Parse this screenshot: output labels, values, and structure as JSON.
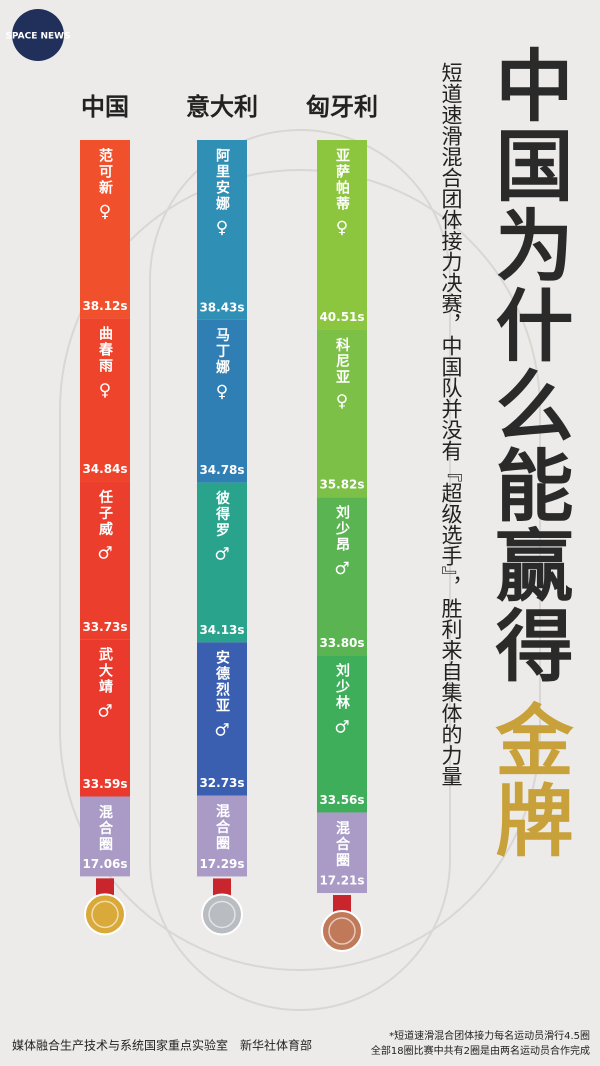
{
  "logo": "SPACE NEWS",
  "chart_data": {
    "type": "stacked-bar",
    "title": [
      "中国为什么能赢得",
      "金牌"
    ],
    "subtitle": "短道速滑混合团体接力决赛，中国队并没有『超级选手』，胜利来自集体的力量",
    "stacks": [
      {
        "name": "中国",
        "medal": "#d9a93a",
        "segments": [
          {
            "label": "范可新",
            "gender": "♀",
            "value": 38.12,
            "value_label": "38.12s",
            "color": "#f0502c"
          },
          {
            "label": "曲春雨",
            "gender": "♀",
            "value": 34.84,
            "value_label": "34.84s",
            "color": "#ee442b"
          },
          {
            "label": "任子威",
            "gender": "♂",
            "value": 33.73,
            "value_label": "33.73s",
            "color": "#ec3e2c"
          },
          {
            "label": "武大靖",
            "gender": "♂",
            "value": 33.59,
            "value_label": "33.59s",
            "color": "#ea3a2e"
          },
          {
            "label": "混合圈",
            "value": 17.06,
            "value_label": "17.06s",
            "color": "#a99bc6"
          }
        ]
      },
      {
        "name": "意大利",
        "medal": "#b9bcc0",
        "segments": [
          {
            "label": "阿里安娜",
            "gender": "♀",
            "value": 38.43,
            "value_label": "38.43s",
            "color": "#2f8fb4"
          },
          {
            "label": "马丁娜",
            "gender": "♀",
            "value": 34.78,
            "value_label": "34.78s",
            "color": "#2f7fb4"
          },
          {
            "label": "彼得罗",
            "gender": "♂",
            "value": 34.13,
            "value_label": "34.13s",
            "color": "#2aa38c"
          },
          {
            "label": "安德烈亚",
            "gender": "♂",
            "value": 32.73,
            "value_label": "32.73s",
            "color": "#3a5fb0"
          },
          {
            "label": "混合圈",
            "value": 17.29,
            "value_label": "17.29s",
            "color": "#a99bc6"
          }
        ]
      },
      {
        "name": "匈牙利",
        "medal": "#c07a5a",
        "segments": [
          {
            "label": "亚萨帕蒂",
            "gender": "♀",
            "value": 40.51,
            "value_label": "40.51s",
            "color": "#8cc63e"
          },
          {
            "label": "科尼亚",
            "gender": "♀",
            "value": 35.82,
            "value_label": "35.82s",
            "color": "#7cc047"
          },
          {
            "label": "刘少昂",
            "gender": "♂",
            "value": 33.8,
            "value_label": "33.80s",
            "color": "#5bb452"
          },
          {
            "label": "刘少林",
            "gender": "♂",
            "value": 33.56,
            "value_label": "33.56s",
            "color": "#3fae5a"
          },
          {
            "label": "混合圈",
            "value": 17.21,
            "value_label": "17.21s",
            "color": "#a99bc6"
          }
        ]
      }
    ]
  },
  "footer": "媒体融合生产技术与系统国家重点实验室　新华社体育部",
  "note": [
    "*短道速滑混合团体接力每名运动员滑行4.5圈",
    "全部18圈比赛中共有2圈是由两名运动员合作完成"
  ]
}
